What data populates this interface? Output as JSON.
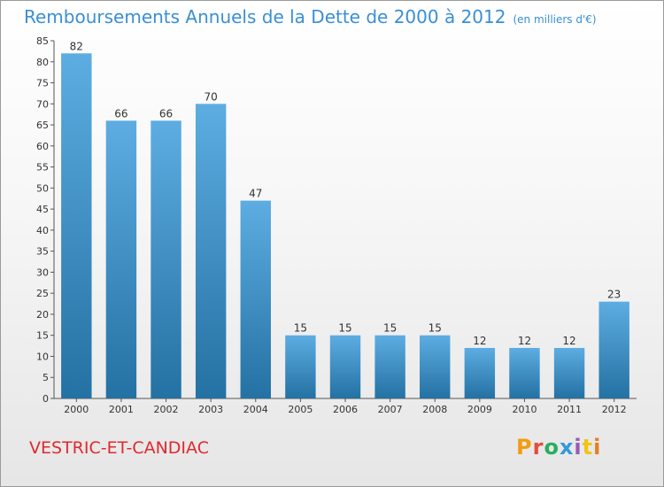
{
  "header": {
    "title": "Remboursements Annuels de la Dette de 2000 à 2012",
    "unit": "(en milliers d'€)"
  },
  "footer": {
    "place": "VESTRIC-ET-CANDIAC",
    "logo_text": "Proxiti",
    "logo_colors": [
      "#f39c12",
      "#e74c3c",
      "#27ae60",
      "#3498db",
      "#9b59b6",
      "#f1c40f",
      "#e67e22"
    ]
  },
  "colors": {
    "bar_top": "#5dade2",
    "bar_bottom": "#2471a3",
    "title": "#3a8fd4",
    "place": "#e0292e"
  },
  "chart_data": {
    "type": "bar",
    "title": "Remboursements Annuels de la Dette de 2000 à 2012",
    "categories": [
      "2000",
      "2001",
      "2002",
      "2003",
      "2004",
      "2005",
      "2006",
      "2007",
      "2008",
      "2009",
      "2010",
      "2011",
      "2012"
    ],
    "values": [
      82,
      66,
      66,
      70,
      47,
      15,
      15,
      15,
      15,
      12,
      12,
      12,
      23
    ],
    "ylim": [
      0,
      85
    ],
    "yticks": [
      0,
      5,
      10,
      15,
      20,
      25,
      30,
      35,
      40,
      45,
      50,
      55,
      60,
      65,
      70,
      75,
      80,
      85
    ],
    "grid": false,
    "data_labels": true
  }
}
